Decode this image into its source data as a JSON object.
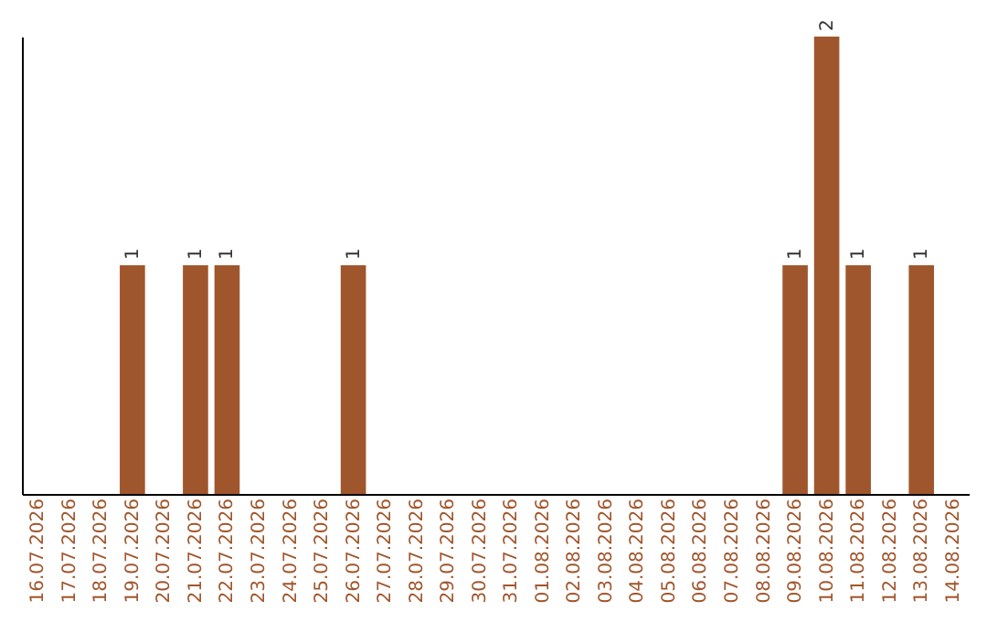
{
  "chart_data": {
    "type": "bar",
    "categories": [
      "16.07.2026",
      "17.07.2026",
      "18.07.2026",
      "19.07.2026",
      "20.07.2026",
      "21.07.2026",
      "22.07.2026",
      "23.07.2026",
      "24.07.2026",
      "25.07.2026",
      "26.07.2026",
      "27.07.2026",
      "28.07.2026",
      "29.07.2026",
      "30.07.2026",
      "31.07.2026",
      "01.08.2026",
      "02.08.2026",
      "03.08.2026",
      "04.08.2026",
      "05.08.2026",
      "06.08.2026",
      "07.08.2026",
      "08.08.2026",
      "09.08.2026",
      "10.08.2026",
      "11.08.2026",
      "12.08.2026",
      "13.08.2026",
      "14.08.2026"
    ],
    "values": [
      0,
      0,
      0,
      1,
      0,
      1,
      1,
      0,
      0,
      0,
      1,
      0,
      0,
      0,
      0,
      0,
      0,
      0,
      0,
      0,
      0,
      0,
      0,
      0,
      1,
      2,
      1,
      0,
      1,
      0
    ],
    "value_labels": [
      null,
      null,
      null,
      "1",
      null,
      "1",
      "1",
      null,
      null,
      null,
      "1",
      null,
      null,
      null,
      null,
      null,
      null,
      null,
      null,
      null,
      null,
      null,
      null,
      null,
      "1",
      "2",
      "1",
      null,
      "1",
      null
    ],
    "color": "#a0562c",
    "grid": false,
    "tick_labels": "x"
  }
}
